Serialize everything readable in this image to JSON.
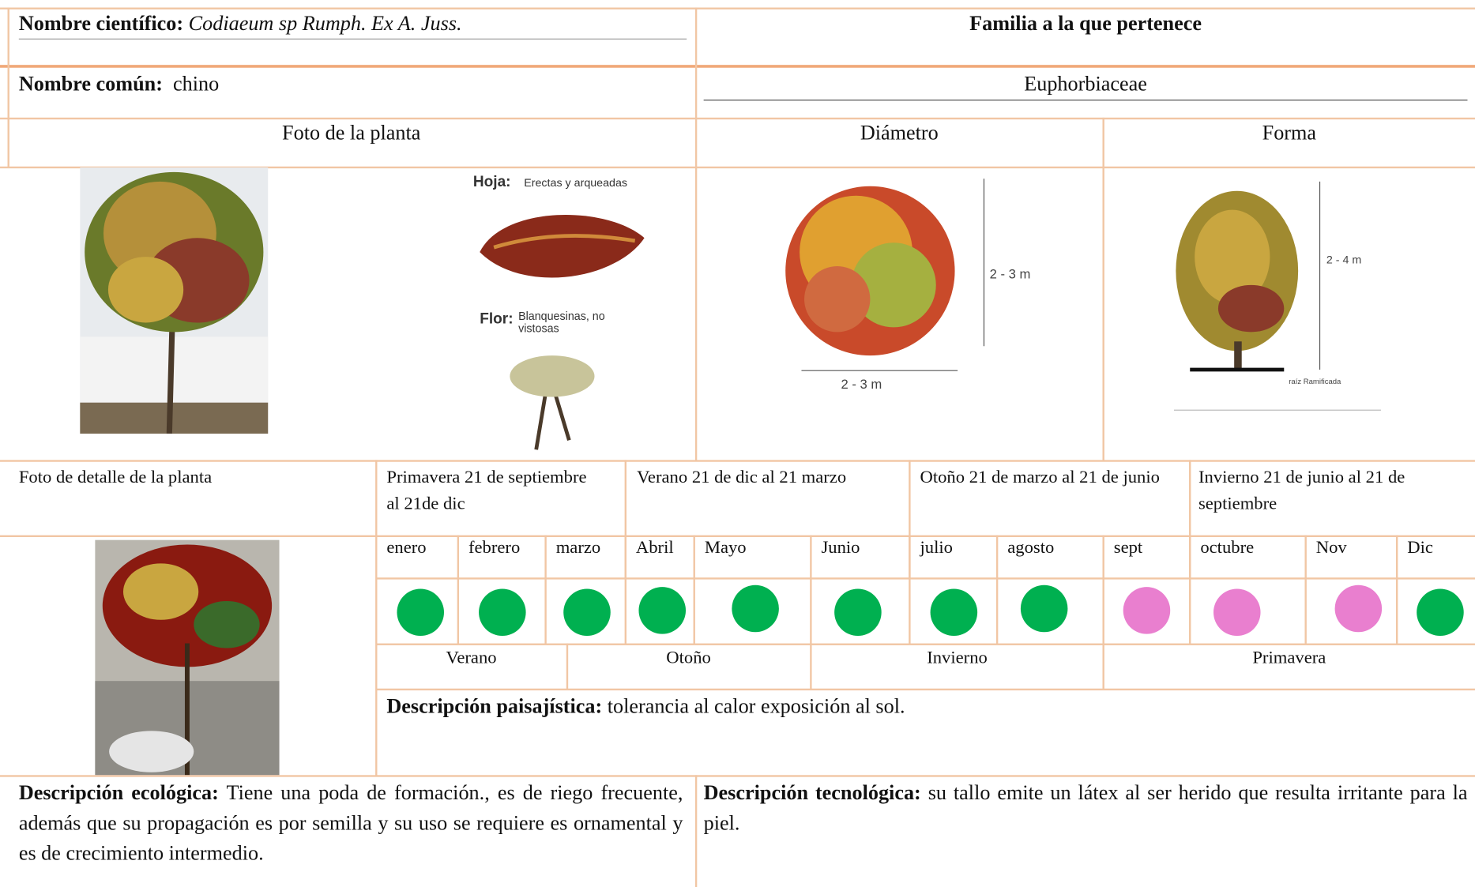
{
  "header": {
    "scientific_name_label": "Nombre científico:",
    "scientific_name": "Codiaeum sp Rumph. Ex A. Juss.",
    "family_label": "Familia a la que pertenece",
    "common_name_label": "Nombre común:",
    "common_name": "chino",
    "family": "Euphorbiaceae"
  },
  "photo_headers": {
    "plant_photo": "Foto de la planta",
    "diameter": "Diámetro",
    "shape": "Forma"
  },
  "figure_labels": {
    "leaf_label": "Hoja:",
    "leaf": "Erectas y arqueadas",
    "flower_label": "Flor:",
    "flower": "Blanquesinas, no vistosas",
    "diameter_height": "2 - 3 m",
    "diameter_width": "2 - 3 m",
    "shape_height": "2 - 4 m",
    "shape_root": "raíz Ramificada"
  },
  "detail_photo_label": "Foto de detalle de la planta",
  "seasons": [
    "Primavera 21 de septiembre al 21de dic",
    "Verano 21 de dic al 21 marzo",
    "Otoño 21 de marzo al 21 de junio",
    "Invierno 21 de junio al 21 de septiembre"
  ],
  "months": [
    "enero",
    "febrero",
    "marzo",
    "Abril",
    "Mayo",
    "Junio",
    "julio",
    "agosto",
    "sept",
    "octubre",
    "Nov",
    "Dic"
  ],
  "month_colors": [
    "#00b050",
    "#00b050",
    "#00b050",
    "#00b050",
    "#00b050",
    "#00b050",
    "#00b050",
    "#00b050",
    "#e97fcf",
    "#e97fcf",
    "#e97fcf",
    "#00b050"
  ],
  "season_row": [
    "Verano",
    "Otoño",
    "Invierno",
    "Primavera"
  ],
  "landscape": {
    "label": "Descripción paisajística:",
    "text": "tolerancia al calor exposición al sol."
  },
  "ecological": {
    "label": "Descripción ecológica:",
    "text": "Tiene una poda de formación., es de riego frecuente, además que su propagación es por semilla y su uso se requiere es ornamental y es de crecimiento intermedio."
  },
  "technological": {
    "label": "Descripción tecnológica:",
    "text": "su tallo emite un látex al ser herido que resulta irritante para la piel."
  }
}
